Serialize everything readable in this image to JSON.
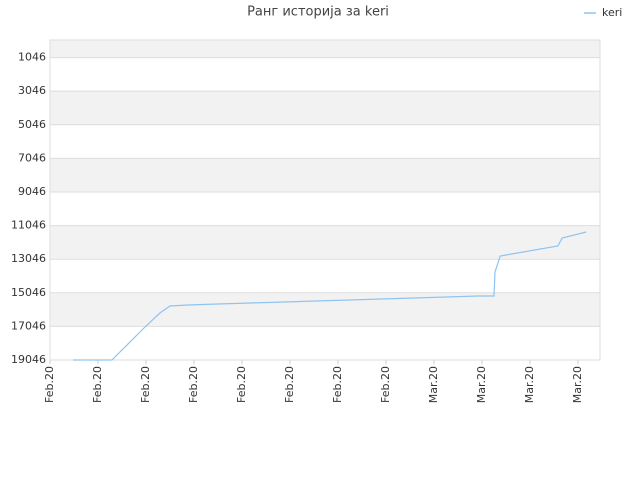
{
  "chart_data": {
    "type": "line",
    "title": "Ранг историја за keri",
    "x": [
      0.48,
      1.29,
      1.5,
      2.0,
      2.29,
      2.5,
      2.88,
      3.5,
      4.17,
      4.9,
      5.52,
      6.25,
      6.88,
      7.58,
      8.25,
      8.92,
      9.25,
      9.27,
      9.38,
      10.58,
      10.67,
      11.17
    ],
    "series": [
      {
        "name": "keri",
        "color": "#90c4f0",
        "values": [
          19046,
          19046,
          18450,
          17023,
          16249,
          15832,
          15773,
          15713,
          15654,
          15594,
          15535,
          15475,
          15416,
          15356,
          15297,
          15237,
          15237,
          13809,
          12856,
          12261,
          11785,
          11428
        ]
      }
    ],
    "xlim": [
      0,
      11.458
    ],
    "xticks": [
      {
        "value": 0,
        "label": "Feb.20"
      },
      {
        "value": 1,
        "label": "Feb.20"
      },
      {
        "value": 2,
        "label": "Feb.20"
      },
      {
        "value": 3,
        "label": "Feb.20"
      },
      {
        "value": 4,
        "label": "Feb.20"
      },
      {
        "value": 5,
        "label": "Feb.20"
      },
      {
        "value": 6,
        "label": "Feb.20"
      },
      {
        "value": 7,
        "label": "Feb.20"
      },
      {
        "value": 8,
        "label": "Mar.20"
      },
      {
        "value": 9,
        "label": "Mar.20"
      },
      {
        "value": 10,
        "label": "Mar.20"
      },
      {
        "value": 11,
        "label": "Mar.20"
      }
    ],
    "ylim": [
      19046,
      0
    ],
    "yticks": [
      1046,
      3046,
      5046,
      7046,
      9046,
      11046,
      13046,
      15046,
      17046,
      19046
    ],
    "grid": true,
    "legend": "top-right"
  }
}
